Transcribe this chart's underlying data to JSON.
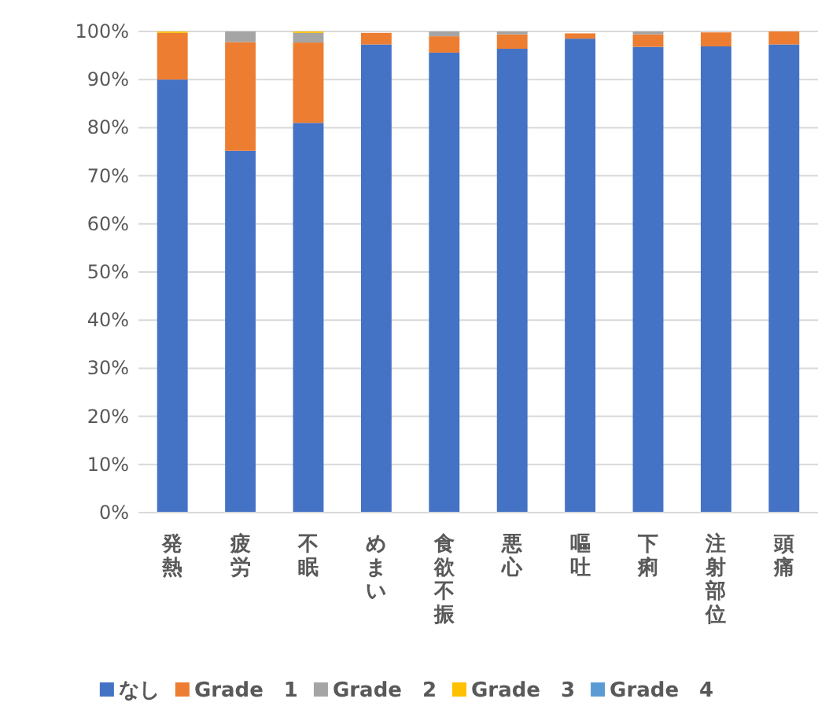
{
  "chart_data": {
    "type": "bar",
    "stacked": true,
    "grid": "y",
    "legend": "bottom",
    "categories": [
      "発熱",
      "疲労",
      "不眠",
      "めまい",
      "食欲不振",
      "悪心",
      "嘔吐",
      "下痢",
      "注射部位",
      "頭痛"
    ],
    "ylim": [
      0,
      100
    ],
    "yticks": [
      {
        "value": 0,
        "label": "0%"
      },
      {
        "value": 10,
        "label": "10%"
      },
      {
        "value": 20,
        "label": "20%"
      },
      {
        "value": 30,
        "label": "30%"
      },
      {
        "value": 40,
        "label": "40%"
      },
      {
        "value": 50,
        "label": "50%"
      },
      {
        "value": 60,
        "label": "60%"
      },
      {
        "value": 70,
        "label": "70%"
      },
      {
        "value": 80,
        "label": "80%"
      },
      {
        "value": 90,
        "label": "90%"
      },
      {
        "value": 100,
        "label": "100%"
      }
    ],
    "series": [
      {
        "name": "なし",
        "color": "#4472c4",
        "values": [
          90,
          75.2,
          81,
          97.3,
          95.6,
          96.4,
          98.5,
          96.8,
          96.9,
          97.3
        ]
      },
      {
        "name": "Grade　1",
        "color": "#ed7d31",
        "values": [
          9.7,
          22.6,
          16.7,
          2.4,
          3.4,
          3,
          1.1,
          2.6,
          2.9,
          2.7
        ]
      },
      {
        "name": "Grade　2",
        "color": "#a5a5a5",
        "values": [
          0,
          2.2,
          2,
          null,
          1,
          0.6,
          null,
          0.6,
          null,
          0
        ]
      },
      {
        "name": "Grade　3",
        "color": "#ffc000",
        "values": [
          0.3,
          0,
          0.3,
          0,
          0,
          0,
          0,
          0,
          0,
          0
        ]
      },
      {
        "name": "Grade　4",
        "color": "#5b9bd5",
        "values": [
          0,
          0,
          0,
          0,
          0,
          0,
          0,
          0,
          0,
          0
        ]
      }
    ]
  }
}
